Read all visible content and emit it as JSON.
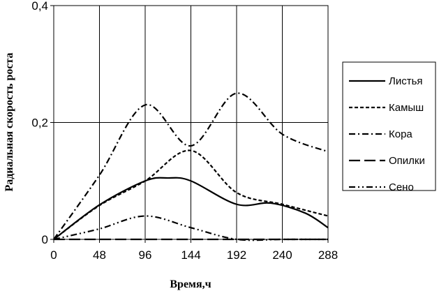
{
  "chart_data": {
    "type": "line",
    "title": "",
    "xlabel": "Время,ч",
    "ylabel": "Радиальная скорость роста",
    "xlim": [
      0,
      288
    ],
    "ylim": [
      0,
      0.4
    ],
    "x_ticks": [
      "0",
      "48",
      "96",
      "144",
      "192",
      "240",
      "288"
    ],
    "y_ticks": [
      "0",
      "0,2",
      "0,4"
    ],
    "grid": "vertical every 48 h and horizontal at 0,2",
    "legend_position": "right",
    "series": [
      {
        "name": "Листья",
        "dash": "solid",
        "x": [
          0,
          48,
          96,
          120,
          144,
          192,
          228,
          264,
          288
        ],
        "y": [
          0,
          0.059,
          0.1,
          0.105,
          0.1,
          0.06,
          0.062,
          0.045,
          0.02
        ]
      },
      {
        "name": "Камыш",
        "dash": "short-dash",
        "x": [
          0,
          48,
          96,
          144,
          192,
          240,
          288
        ],
        "y": [
          0,
          0.058,
          0.1,
          0.152,
          0.08,
          0.06,
          0.04
        ]
      },
      {
        "name": "Кора",
        "dash": "dash-dot",
        "x": [
          0,
          48,
          96,
          144,
          192,
          240,
          288
        ],
        "y": [
          0,
          0.11,
          0.23,
          0.16,
          0.25,
          0.18,
          0.15
        ]
      },
      {
        "name": "Опилки",
        "dash": "long-dash",
        "x": [
          0,
          48,
          96,
          144,
          192,
          240,
          288
        ],
        "y": [
          0,
          0,
          0,
          0,
          0,
          0,
          0
        ]
      },
      {
        "name": "Сено",
        "dash": "dash-dot-dot",
        "x": [
          0,
          48,
          96,
          144,
          192,
          240,
          288
        ],
        "y": [
          0,
          0.018,
          0.04,
          0.02,
          0,
          0,
          0
        ]
      }
    ]
  }
}
